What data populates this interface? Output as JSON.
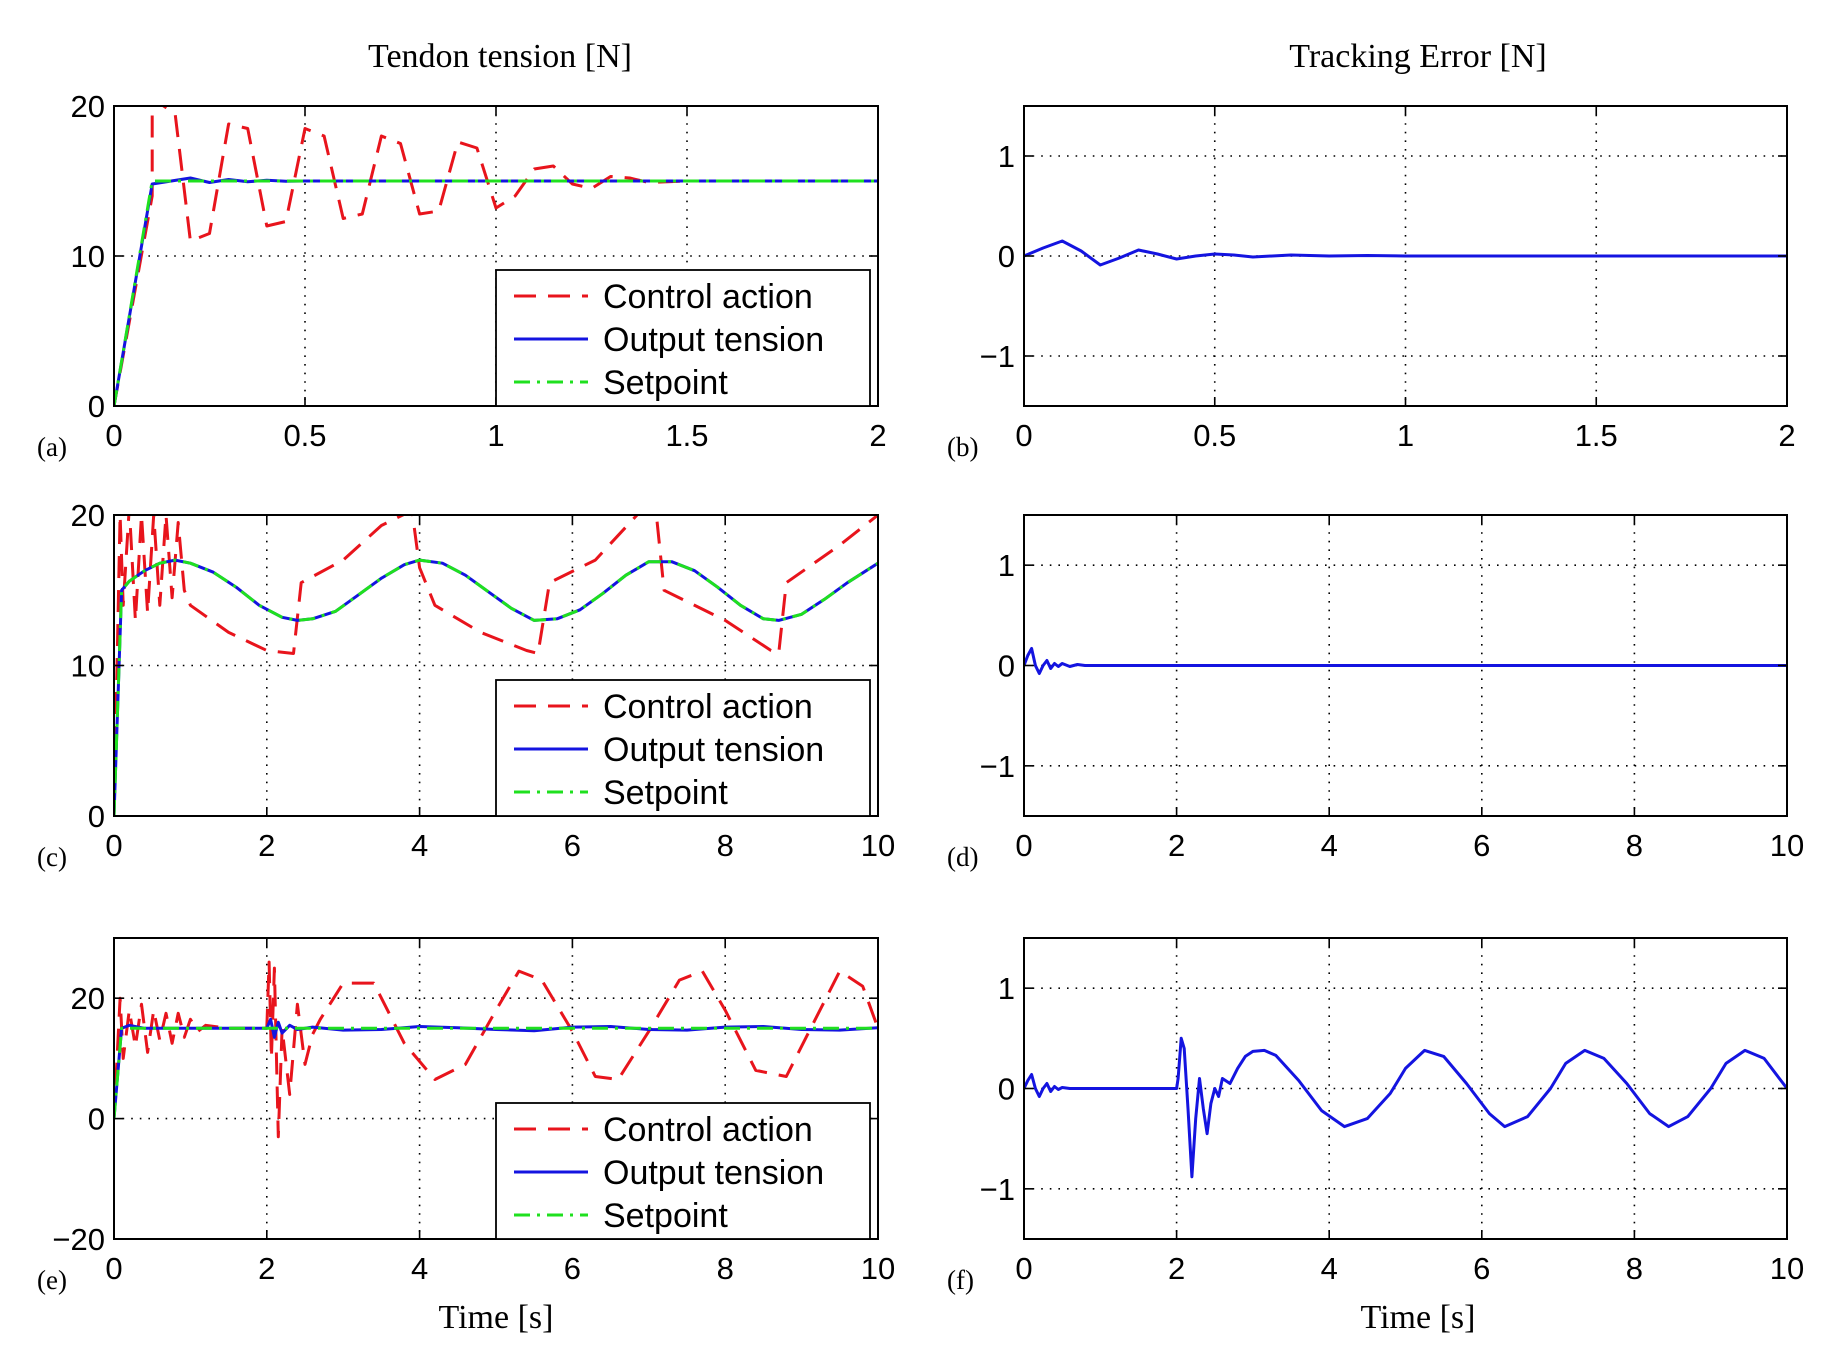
{
  "column_titles": {
    "left": "Tendon tension [N]",
    "right": "Tracking Error [N]"
  },
  "xlabel": "Time [s]",
  "legend_labels": [
    "Control action",
    "Output tension",
    "Setpoint"
  ],
  "colors": {
    "control": "#e8141c",
    "output": "#1414e0",
    "setpoint": "#1fe01f",
    "grid": "#000000"
  },
  "chart_data": [
    {
      "id": "a",
      "panel_label": "(a)",
      "type": "line",
      "column": "left",
      "row": 0,
      "title": "Tendon tension [N]",
      "xlim": [
        0,
        2
      ],
      "ylim": [
        0,
        20
      ],
      "xticks": [
        0,
        0.5,
        1,
        1.5,
        2
      ],
      "xtick_labels": [
        "0",
        "0.5",
        "1",
        "1.5",
        "2"
      ],
      "yticks": [
        0,
        10,
        20
      ],
      "ytick_labels": [
        "0",
        "10",
        "20"
      ],
      "grid": true,
      "legend": "bottom-right",
      "series": [
        {
          "name": "Control action",
          "style": "dashed",
          "color": "#e8141c",
          "x": [
            0,
            0.1,
            0.1,
            0.16,
            0.2,
            0.25,
            0.3,
            0.35,
            0.4,
            0.45,
            0.5,
            0.55,
            0.6,
            0.65,
            0.7,
            0.75,
            0.8,
            0.85,
            0.9,
            0.95,
            1.0,
            1.05,
            1.1,
            1.15,
            1.2,
            1.25,
            1.3,
            1.35,
            1.4,
            1.5,
            1.6,
            2.0
          ],
          "y": [
            0,
            14,
            20.5,
            19.5,
            11.0,
            11.5,
            18.8,
            18.5,
            12.0,
            12.3,
            18.5,
            18.0,
            12.5,
            12.8,
            18.0,
            17.5,
            12.8,
            13.0,
            17.6,
            17.2,
            13.2,
            14.0,
            15.8,
            16.0,
            14.8,
            14.5,
            15.3,
            15.2,
            14.9,
            15.0,
            15.0,
            15.0
          ]
        },
        {
          "name": "Output tension",
          "style": "solid",
          "color": "#1414e0",
          "x": [
            0,
            0.1,
            0.15,
            0.2,
            0.25,
            0.3,
            0.35,
            0.4,
            0.45,
            0.5,
            0.6,
            2.0
          ],
          "y": [
            0,
            14.8,
            15.0,
            15.2,
            14.9,
            15.1,
            14.95,
            15.05,
            14.98,
            15.0,
            15.0,
            15.0
          ]
        },
        {
          "name": "Setpoint",
          "style": "dashdot",
          "color": "#1fe01f",
          "x": [
            0,
            0.1,
            2.0
          ],
          "y": [
            0,
            15,
            15
          ]
        }
      ]
    },
    {
      "id": "b",
      "panel_label": "(b)",
      "type": "line",
      "column": "right",
      "row": 0,
      "title": "Tracking Error [N]",
      "xlim": [
        0,
        2
      ],
      "ylim": [
        -1.5,
        1.5
      ],
      "xticks": [
        0,
        0.5,
        1,
        1.5,
        2
      ],
      "xtick_labels": [
        "0",
        "0.5",
        "1",
        "1.5",
        "2"
      ],
      "yticks": [
        -1,
        0,
        1
      ],
      "ytick_labels": [
        "−1",
        "0",
        "1"
      ],
      "grid": true,
      "series": [
        {
          "name": "Tracking error",
          "style": "solid",
          "color": "#1414e0",
          "x": [
            0,
            0.05,
            0.1,
            0.15,
            0.2,
            0.25,
            0.3,
            0.35,
            0.4,
            0.45,
            0.5,
            0.55,
            0.6,
            0.7,
            0.8,
            0.9,
            1.0,
            1.2,
            2.0
          ],
          "y": [
            0,
            0.08,
            0.15,
            0.05,
            -0.09,
            -0.02,
            0.06,
            0.02,
            -0.03,
            0.0,
            0.02,
            0.01,
            -0.01,
            0.01,
            0.0,
            0.005,
            0.0,
            0.0,
            0.0
          ]
        }
      ]
    },
    {
      "id": "c",
      "panel_label": "(c)",
      "type": "line",
      "column": "left",
      "row": 1,
      "title": "",
      "xlim": [
        0,
        10
      ],
      "ylim": [
        0,
        20
      ],
      "xticks": [
        0,
        2,
        4,
        6,
        8,
        10
      ],
      "xtick_labels": [
        "0",
        "2",
        "4",
        "6",
        "8",
        "10"
      ],
      "yticks": [
        0,
        10,
        20
      ],
      "ytick_labels": [
        "0",
        "10",
        "20"
      ],
      "grid": true,
      "legend": "bottom-right",
      "series": [
        {
          "name": "Control action",
          "style": "dashed",
          "color": "#e8141c",
          "x": [
            0,
            0.08,
            0.12,
            0.2,
            0.28,
            0.36,
            0.44,
            0.52,
            0.6,
            0.68,
            0.76,
            0.84,
            0.92,
            1.0,
            1.5,
            2.0,
            2.35,
            2.45,
            3.0,
            3.5,
            3.9,
            4.0,
            4.2,
            4.8,
            5.4,
            5.55,
            5.7,
            6.3,
            6.9,
            7.1,
            7.2,
            8.0,
            8.6,
            8.7,
            8.8,
            9.5,
            10.0
          ],
          "y": [
            0,
            20.0,
            14.0,
            20.5,
            13.0,
            20.0,
            13.5,
            20.0,
            14.0,
            20.0,
            14.5,
            19.5,
            15.0,
            14.0,
            12.2,
            11.0,
            10.8,
            15.5,
            17.0,
            19.3,
            20.3,
            16.5,
            14.0,
            12.2,
            11.0,
            10.8,
            15.5,
            17.0,
            20.3,
            20.0,
            15.0,
            13.0,
            11.0,
            10.8,
            15.5,
            18.0,
            20.0
          ]
        },
        {
          "name": "Output tension",
          "style": "solid",
          "color": "#1414e0",
          "x": [
            0,
            0.1,
            0.2,
            0.4,
            0.6,
            0.8,
            1.0,
            1.3,
            1.6,
            1.9,
            2.2,
            2.4,
            2.6,
            2.9,
            3.2,
            3.5,
            3.8,
            4.0,
            4.3,
            4.6,
            4.9,
            5.2,
            5.5,
            5.8,
            6.1,
            6.4,
            6.7,
            7.0,
            7.3,
            7.6,
            7.9,
            8.2,
            8.5,
            8.7,
            9.0,
            9.3,
            9.6,
            10.0
          ],
          "y": [
            0,
            15.0,
            15.6,
            16.3,
            16.8,
            17.0,
            16.8,
            16.2,
            15.2,
            14.0,
            13.2,
            13.0,
            13.1,
            13.6,
            14.7,
            15.8,
            16.7,
            17.0,
            16.8,
            16.0,
            14.9,
            13.8,
            13.0,
            13.1,
            13.7,
            14.8,
            16.0,
            16.9,
            16.9,
            16.3,
            15.2,
            14.0,
            13.1,
            13.0,
            13.4,
            14.4,
            15.5,
            16.8
          ]
        },
        {
          "name": "Setpoint",
          "style": "dashdot",
          "color": "#1fe01f",
          "x": [
            0,
            0.1,
            0.2,
            0.4,
            0.6,
            0.8,
            1.0,
            1.3,
            1.6,
            1.9,
            2.2,
            2.4,
            2.6,
            2.9,
            3.2,
            3.5,
            3.8,
            4.0,
            4.3,
            4.6,
            4.9,
            5.2,
            5.5,
            5.8,
            6.1,
            6.4,
            6.7,
            7.0,
            7.3,
            7.6,
            7.9,
            8.2,
            8.5,
            8.7,
            9.0,
            9.3,
            9.6,
            10.0
          ],
          "y": [
            0,
            15.0,
            15.6,
            16.3,
            16.8,
            17.0,
            16.8,
            16.2,
            15.2,
            14.0,
            13.2,
            13.0,
            13.1,
            13.6,
            14.7,
            15.8,
            16.7,
            17.0,
            16.8,
            16.0,
            14.9,
            13.8,
            13.0,
            13.1,
            13.7,
            14.8,
            16.0,
            16.9,
            16.9,
            16.3,
            15.2,
            14.0,
            13.1,
            13.0,
            13.4,
            14.4,
            15.5,
            16.8
          ]
        }
      ]
    },
    {
      "id": "d",
      "panel_label": "(d)",
      "type": "line",
      "column": "right",
      "row": 1,
      "title": "",
      "xlim": [
        0,
        10
      ],
      "ylim": [
        -1.5,
        1.5
      ],
      "xticks": [
        0,
        2,
        4,
        6,
        8,
        10
      ],
      "xtick_labels": [
        "0",
        "2",
        "4",
        "6",
        "8",
        "10"
      ],
      "yticks": [
        -1,
        0,
        1
      ],
      "ytick_labels": [
        "−1",
        "0",
        "1"
      ],
      "grid": true,
      "series": [
        {
          "name": "Tracking error",
          "style": "solid",
          "color": "#1414e0",
          "x": [
            0,
            0.05,
            0.1,
            0.15,
            0.2,
            0.25,
            0.3,
            0.35,
            0.4,
            0.45,
            0.5,
            0.6,
            0.7,
            0.8,
            1.0,
            2.0,
            4.0,
            6.0,
            8.0,
            10.0
          ],
          "y": [
            0,
            0.1,
            0.17,
            0.0,
            -0.08,
            0.0,
            0.05,
            -0.03,
            0.02,
            -0.01,
            0.02,
            -0.01,
            0.01,
            0.0,
            0.0,
            0.0,
            0.0,
            0.0,
            0.0,
            0.0
          ]
        }
      ]
    },
    {
      "id": "e",
      "panel_label": "(e)",
      "type": "line",
      "column": "left",
      "row": 2,
      "title": "",
      "xlabel": "Time [s]",
      "xlim": [
        0,
        10
      ],
      "ylim": [
        -20,
        30
      ],
      "xticks": [
        0,
        2,
        4,
        6,
        8,
        10
      ],
      "xtick_labels": [
        "0",
        "2",
        "4",
        "6",
        "8",
        "10"
      ],
      "yticks": [
        -20,
        0,
        20
      ],
      "ytick_labels": [
        "−20",
        "0",
        "20"
      ],
      "grid": true,
      "legend": "bottom-right",
      "series": [
        {
          "name": "Control action",
          "style": "dashed",
          "color": "#e8141c",
          "x": [
            0,
            0.08,
            0.12,
            0.2,
            0.28,
            0.36,
            0.44,
            0.52,
            0.6,
            0.68,
            0.76,
            0.84,
            0.92,
            1.0,
            1.1,
            1.2,
            1.5,
            2.0,
            2.03,
            2.06,
            2.1,
            2.15,
            2.2,
            2.3,
            2.4,
            2.5,
            2.6,
            2.7,
            3.0,
            3.4,
            3.8,
            4.2,
            4.6,
            5.0,
            5.3,
            5.6,
            6.0,
            6.3,
            6.6,
            7.0,
            7.4,
            7.7,
            8.0,
            8.4,
            8.8,
            9.1,
            9.5,
            9.8,
            10.0
          ],
          "y": [
            0,
            20,
            10,
            18,
            12,
            19,
            11,
            18,
            13,
            17.5,
            12.5,
            17.5,
            13.5,
            16.5,
            14.5,
            15.5,
            15.0,
            15.0,
            26,
            10,
            25,
            -3,
            15,
            4,
            19,
            9,
            14,
            16.5,
            22.5,
            22.5,
            12.5,
            6.5,
            9,
            18,
            24.5,
            23,
            14.5,
            7,
            6.5,
            14.5,
            23,
            24.5,
            18,
            8,
            7,
            14.5,
            24.5,
            22,
            15
          ]
        },
        {
          "name": "Output tension",
          "style": "solid",
          "color": "#1414e0",
          "x": [
            0,
            0.1,
            0.2,
            0.4,
            1.0,
            2.0,
            2.05,
            2.1,
            2.15,
            2.2,
            2.3,
            2.4,
            2.6,
            3.0,
            3.5,
            4.0,
            4.5,
            5.0,
            5.5,
            6.0,
            6.5,
            7.0,
            7.5,
            8.0,
            8.5,
            9.0,
            9.5,
            10.0
          ],
          "y": [
            0,
            15,
            15.5,
            15,
            15,
            15,
            16.5,
            13.5,
            16,
            14.2,
            15.5,
            14.8,
            15.2,
            14.7,
            14.8,
            15.3,
            15.1,
            14.8,
            14.6,
            15.2,
            15.3,
            14.8,
            14.7,
            15.2,
            15.3,
            14.8,
            14.7,
            15.1
          ]
        },
        {
          "name": "Setpoint",
          "style": "dashdot",
          "color": "#1fe01f",
          "x": [
            0,
            0.1,
            10.0
          ],
          "y": [
            0,
            15,
            15
          ]
        }
      ]
    },
    {
      "id": "f",
      "panel_label": "(f)",
      "type": "line",
      "column": "right",
      "row": 2,
      "title": "",
      "xlabel": "Time [s]",
      "xlim": [
        0,
        10
      ],
      "ylim": [
        -1.5,
        1.5
      ],
      "xticks": [
        0,
        2,
        4,
        6,
        8,
        10
      ],
      "xtick_labels": [
        "0",
        "2",
        "4",
        "6",
        "8",
        "10"
      ],
      "yticks": [
        -1,
        0,
        1
      ],
      "ytick_labels": [
        "−1",
        "0",
        "1"
      ],
      "grid": true,
      "series": [
        {
          "name": "Tracking error",
          "style": "solid",
          "color": "#1414e0",
          "x": [
            0,
            0.05,
            0.1,
            0.15,
            0.2,
            0.25,
            0.3,
            0.35,
            0.4,
            0.45,
            0.5,
            0.6,
            0.7,
            0.8,
            1.0,
            2.0,
            2.02,
            2.06,
            2.1,
            2.15,
            2.2,
            2.25,
            2.3,
            2.35,
            2.4,
            2.45,
            2.5,
            2.55,
            2.6,
            2.7,
            2.8,
            2.9,
            3.0,
            3.15,
            3.3,
            3.6,
            3.9,
            4.2,
            4.5,
            4.8,
            5.0,
            5.25,
            5.5,
            5.8,
            6.1,
            6.3,
            6.6,
            6.9,
            7.1,
            7.35,
            7.6,
            7.9,
            8.2,
            8.45,
            8.7,
            9.0,
            9.2,
            9.45,
            9.7,
            10.0
          ],
          "y": [
            0,
            0.08,
            0.14,
            0.0,
            -0.08,
            0.0,
            0.05,
            -0.03,
            0.02,
            -0.01,
            0.01,
            0.0,
            0.0,
            0.0,
            0.0,
            0.0,
            0.1,
            0.5,
            0.4,
            -0.2,
            -0.88,
            -0.3,
            0.1,
            -0.2,
            -0.45,
            -0.15,
            0.0,
            -0.08,
            0.1,
            0.05,
            0.2,
            0.32,
            0.37,
            0.38,
            0.33,
            0.08,
            -0.22,
            -0.38,
            -0.3,
            -0.05,
            0.2,
            0.38,
            0.32,
            0.05,
            -0.25,
            -0.38,
            -0.28,
            0.0,
            0.25,
            0.38,
            0.3,
            0.05,
            -0.25,
            -0.38,
            -0.28,
            0.0,
            0.25,
            0.38,
            0.3,
            0.0
          ]
        }
      ]
    }
  ]
}
